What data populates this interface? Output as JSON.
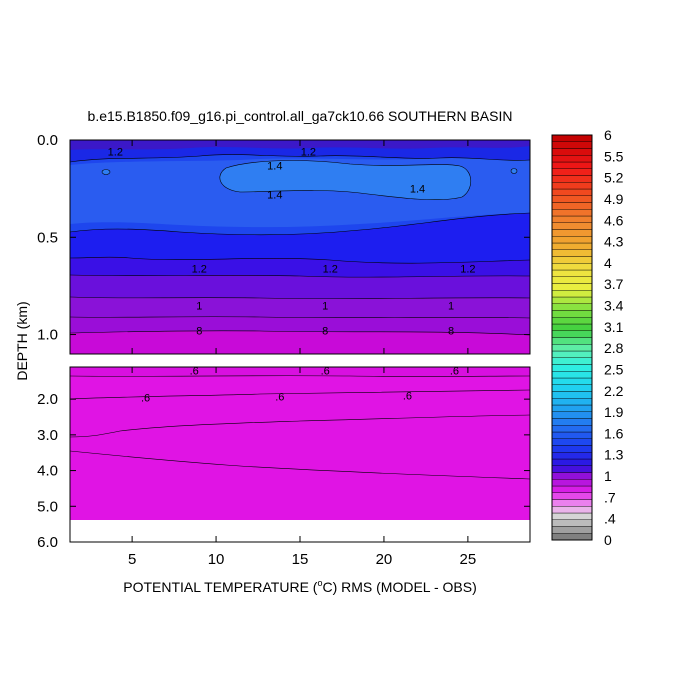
{
  "chart_data": {
    "type": "heatmap",
    "title": "b.e15.B1850.f09_g16.pi_control.all_ga7ck10.66 SOUTHERN BASIN",
    "xlabel_main": "POTENTIAL TEMPERATURE (",
    "xlabel_sup": "o",
    "xlabel_rest": "C) RMS (MODEL - OBS)",
    "ylabel": "DEPTH (km)",
    "x_range": [
      1.3,
      28.7
    ],
    "x_ticks": [
      "5",
      "10",
      "15",
      "20",
      "25"
    ],
    "x_tick_values": [
      5,
      10,
      15,
      20,
      25
    ],
    "upper_panel": {
      "y_range": [
        0.0,
        1.1
      ],
      "y_ticks": [
        "0.0",
        "0.5",
        "1.0"
      ],
      "y_tick_values": [
        0.0,
        0.5,
        1.0
      ]
    },
    "lower_panel": {
      "y_range": [
        1.1,
        6.0
      ],
      "y_ticks": [
        "2.0",
        "3.0",
        "4.0",
        "5.0",
        "6.0"
      ],
      "y_tick_values": [
        2.0,
        3.0,
        4.0,
        5.0,
        6.0
      ],
      "missing_below_depth": 5.35
    },
    "contour_labels": [
      {
        "text": "1.2",
        "x": 4.0,
        "depth": 0.06
      },
      {
        "text": "1.2",
        "x": 15.5,
        "depth": 0.06
      },
      {
        "text": "1.4",
        "x": 13.5,
        "depth": 0.13
      },
      {
        "text": "1.4",
        "x": 13.5,
        "depth": 0.28
      },
      {
        "text": "1.4",
        "x": 22.0,
        "depth": 0.25
      },
      {
        "text": "1.2",
        "x": 9.0,
        "depth": 0.66
      },
      {
        "text": "1.2",
        "x": 16.8,
        "depth": 0.66
      },
      {
        "text": "1.2",
        "x": 25.0,
        "depth": 0.66
      },
      {
        "text": "1",
        "x": 9.0,
        "depth": 0.85
      },
      {
        "text": "1",
        "x": 16.5,
        "depth": 0.85
      },
      {
        "text": "1",
        "x": 24.0,
        "depth": 0.85
      },
      {
        "text": "8",
        "x": 9.0,
        "depth": 0.98
      },
      {
        "text": "8",
        "x": 16.5,
        "depth": 0.98
      },
      {
        "text": "8",
        "x": 24.0,
        "depth": 0.98
      },
      {
        "text": ".6",
        "x": 8.7,
        "depth": 1.2
      },
      {
        "text": ".6",
        "x": 16.5,
        "depth": 1.2
      },
      {
        "text": ".6",
        "x": 24.2,
        "depth": 1.2
      },
      {
        "text": ".6",
        "x": 5.8,
        "depth": 1.95
      },
      {
        "text": ".6",
        "x": 13.8,
        "depth": 1.92
      },
      {
        "text": ".6",
        "x": 21.4,
        "depth": 1.9
      }
    ],
    "colorbar": {
      "min": 0,
      "max": 6,
      "tick_labels": [
        "6",
        "5.5",
        "5.2",
        "4.9",
        "4.6",
        "4.3",
        "4",
        "3.7",
        "3.4",
        "3.1",
        "2.8",
        "2.5",
        "2.2",
        "1.9",
        "1.6",
        "1.3",
        "1",
        ".7",
        ".4",
        "0"
      ],
      "tick_values": [
        6,
        5.5,
        5.2,
        4.9,
        4.6,
        4.3,
        4.0,
        3.7,
        3.4,
        3.1,
        2.8,
        2.5,
        2.2,
        1.9,
        1.6,
        1.3,
        1.0,
        0.7,
        0.4,
        0
      ]
    }
  }
}
